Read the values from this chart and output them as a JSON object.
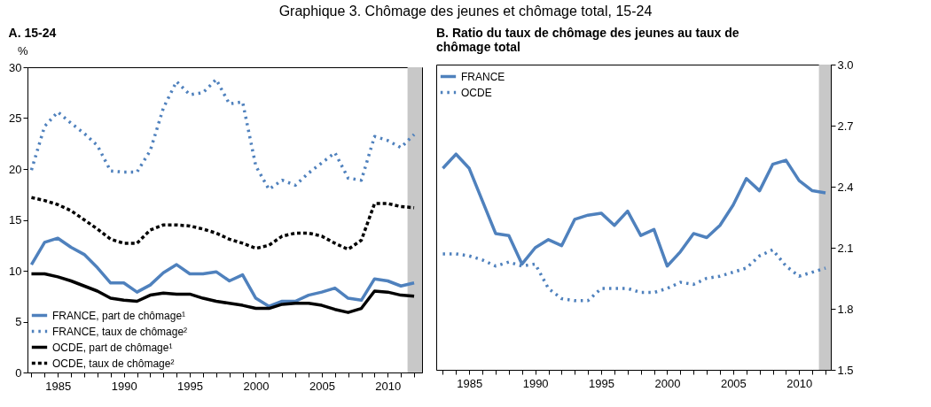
{
  "chart_data": [
    {
      "type": "line",
      "title": "A. 15-24",
      "ylabel": "%",
      "annotations": [
        "Graphique 3. Chômage des jeunes et chômage total, 15-24"
      ],
      "x": [
        1983,
        1984,
        1985,
        1986,
        1987,
        1988,
        1989,
        1990,
        1991,
        1992,
        1993,
        1994,
        1995,
        1996,
        1997,
        1998,
        1999,
        2000,
        2001,
        2002,
        2003,
        2004,
        2005,
        2006,
        2007,
        2008,
        2009,
        2010,
        2011,
        2012
      ],
      "series": [
        {
          "name": "FRANCE, part de chômage¹",
          "color": "#4f81bd",
          "line_style": "solid",
          "values": [
            10.6,
            12.8,
            13.2,
            12.3,
            11.6,
            10.3,
            8.8,
            8.8,
            7.9,
            8.6,
            9.8,
            10.6,
            9.7,
            9.7,
            9.9,
            9.0,
            9.6,
            7.3,
            6.5,
            7.0,
            7.0,
            7.6,
            7.9,
            8.3,
            7.3,
            7.1,
            9.2,
            9.0,
            8.5,
            8.8
          ]
        },
        {
          "name": "FRANCE, taux de chômage²",
          "color": "#4f81bd",
          "line_style": "dotted",
          "values": [
            19.9,
            24.2,
            25.6,
            24.5,
            23.5,
            22.3,
            19.8,
            19.7,
            19.7,
            21.8,
            26.0,
            28.6,
            27.3,
            27.5,
            28.8,
            26.4,
            26.6,
            20.3,
            18.0,
            18.9,
            18.4,
            19.6,
            20.6,
            21.6,
            19.1,
            18.9,
            23.2,
            22.8,
            22.1,
            23.4
          ]
        },
        {
          "name": "OCDE, part de chômage¹",
          "color": "#000000",
          "line_style": "solid",
          "values": [
            9.7,
            9.7,
            9.4,
            9.0,
            8.5,
            8.0,
            7.3,
            7.1,
            7.0,
            7.6,
            7.8,
            7.7,
            7.7,
            7.3,
            7.0,
            6.8,
            6.6,
            6.3,
            6.3,
            6.7,
            6.8,
            6.8,
            6.6,
            6.2,
            5.9,
            6.3,
            8.0,
            7.9,
            7.6,
            7.5
          ]
        },
        {
          "name": "OCDE, taux de chômage²",
          "color": "#000000",
          "line_style": "dashed",
          "values": [
            17.2,
            16.9,
            16.5,
            15.9,
            15.0,
            14.1,
            13.1,
            12.7,
            12.7,
            14.0,
            14.5,
            14.5,
            14.4,
            14.1,
            13.7,
            13.1,
            12.7,
            12.2,
            12.5,
            13.4,
            13.7,
            13.7,
            13.4,
            12.7,
            12.1,
            13.0,
            16.6,
            16.6,
            16.3,
            16.2
          ]
        }
      ],
      "xlim": [
        1982.7,
        2012.6
      ],
      "xticks": [
        {
          "value": 1983,
          "label": null
        },
        {
          "value": 1984,
          "label": null
        },
        1985,
        {
          "value": 1986,
          "label": null
        },
        {
          "value": 1987,
          "label": null
        },
        {
          "value": 1988,
          "label": null
        },
        {
          "value": 1989,
          "label": null
        },
        1990,
        {
          "value": 1991,
          "label": null
        },
        {
          "value": 1992,
          "label": null
        },
        {
          "value": 1993,
          "label": null
        },
        {
          "value": 1994,
          "label": null
        },
        1995,
        {
          "value": 1996,
          "label": null
        },
        {
          "value": 1997,
          "label": null
        },
        {
          "value": 1998,
          "label": null
        },
        {
          "value": 1999,
          "label": null
        },
        2000,
        {
          "value": 2001,
          "label": null
        },
        {
          "value": 2002,
          "label": null
        },
        {
          "value": 2003,
          "label": null
        },
        {
          "value": 2004,
          "label": null
        },
        2005,
        {
          "value": 2006,
          "label": null
        },
        {
          "value": 2007,
          "label": null
        },
        {
          "value": 2008,
          "label": null
        },
        {
          "value": 2009,
          "label": null
        },
        2010,
        {
          "value": 2011,
          "label": null
        },
        {
          "value": 2012,
          "label": null
        }
      ],
      "ylim": [
        0,
        30
      ],
      "yticks": [
        0,
        5,
        10,
        15,
        20,
        25,
        30
      ],
      "bands": [
        {
          "axis": "x",
          "from": 2011.5,
          "to": 2012.6,
          "color": "#c8c8c8"
        }
      ],
      "legend": "bottom left"
    },
    {
      "type": "line",
      "title": "B. Ratio du taux de chômage des jeunes au taux de chômage total",
      "x": [
        1983,
        1984,
        1985,
        1986,
        1987,
        1988,
        1989,
        1990,
        1991,
        1992,
        1993,
        1994,
        1995,
        1996,
        1997,
        1998,
        1999,
        2000,
        2001,
        2002,
        2003,
        2004,
        2005,
        2006,
        2007,
        2008,
        2009,
        2010,
        2011,
        2012
      ],
      "series": [
        {
          "name": "FRANCE",
          "color": "#4f81bd",
          "line_style": "solid",
          "axis": "y2",
          "values": [
            2.49,
            2.56,
            2.49,
            2.33,
            2.17,
            2.16,
            2.02,
            2.1,
            2.14,
            2.11,
            2.24,
            2.26,
            2.27,
            2.21,
            2.28,
            2.16,
            2.19,
            2.01,
            2.08,
            2.17,
            2.15,
            2.21,
            2.31,
            2.44,
            2.38,
            2.51,
            2.53,
            2.43,
            2.38,
            2.37
          ]
        },
        {
          "name": "OCDE",
          "color": "#4f81bd",
          "line_style": "dotted",
          "axis": "y2",
          "values": [
            2.07,
            2.07,
            2.06,
            2.04,
            2.01,
            2.03,
            2.01,
            2.02,
            1.9,
            1.85,
            1.84,
            1.84,
            1.9,
            1.9,
            1.9,
            1.88,
            1.88,
            1.9,
            1.93,
            1.92,
            1.95,
            1.96,
            1.98,
            2.0,
            2.06,
            2.09,
            2.01,
            1.96,
            1.98,
            2.0
          ]
        }
      ],
      "xlim": [
        1982.5,
        2012.4
      ],
      "xticks": [
        {
          "value": 1983,
          "label": null
        },
        {
          "value": 1984,
          "label": null
        },
        1985,
        {
          "value": 1986,
          "label": null
        },
        {
          "value": 1987,
          "label": null
        },
        {
          "value": 1988,
          "label": null
        },
        {
          "value": 1989,
          "label": null
        },
        1990,
        {
          "value": 1991,
          "label": null
        },
        {
          "value": 1992,
          "label": null
        },
        {
          "value": 1993,
          "label": null
        },
        {
          "value": 1994,
          "label": null
        },
        1995,
        {
          "value": 1996,
          "label": null
        },
        {
          "value": 1997,
          "label": null
        },
        {
          "value": 1998,
          "label": null
        },
        {
          "value": 1999,
          "label": null
        },
        2000,
        {
          "value": 2001,
          "label": null
        },
        {
          "value": 2002,
          "label": null
        },
        {
          "value": 2003,
          "label": null
        },
        {
          "value": 2004,
          "label": null
        },
        2005,
        {
          "value": 2006,
          "label": null
        },
        {
          "value": 2007,
          "label": null
        },
        {
          "value": 2008,
          "label": null
        },
        {
          "value": 2009,
          "label": null
        },
        2010,
        {
          "value": 2011,
          "label": null
        },
        {
          "value": 2012,
          "label": null
        }
      ],
      "y2lim": [
        1.5,
        3.0
      ],
      "y2ticks": [
        {
          "value": 1.5,
          "label": "1.5"
        },
        {
          "value": 1.8,
          "label": "1.8"
        },
        {
          "value": 2.1,
          "label": "2.1"
        },
        {
          "value": 2.4,
          "label": "2.4"
        },
        {
          "value": 2.7,
          "label": "2.7"
        },
        {
          "value": 3.0,
          "label": "3.0"
        }
      ],
      "bands": [
        {
          "axis": "x",
          "from": 2011.5,
          "to": 2012.4,
          "color": "#c8c8c8"
        }
      ],
      "legend": "top left"
    }
  ]
}
